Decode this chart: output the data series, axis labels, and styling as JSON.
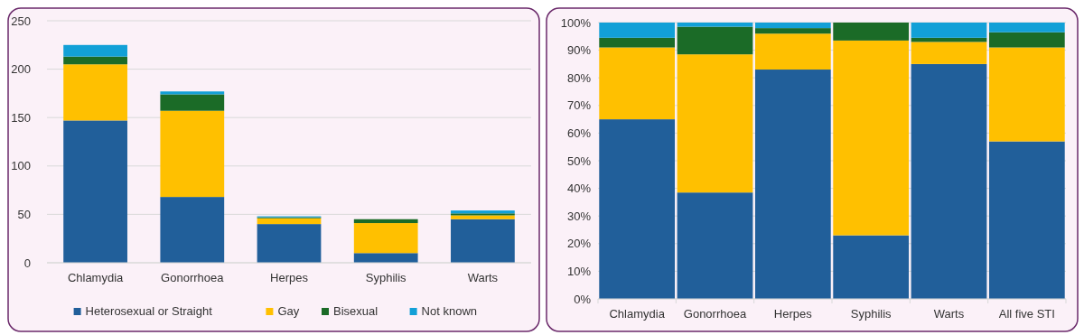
{
  "chart_data": [
    {
      "type": "bar",
      "stacked": true,
      "categories": [
        "Chlamydia",
        "Gonorrhoea",
        "Herpes",
        "Syphilis",
        "Warts"
      ],
      "series": [
        {
          "name": "Heterosexual or Straight",
          "color": "#215f9a",
          "values": [
            147,
            68,
            40,
            10,
            45
          ]
        },
        {
          "name": "Gay",
          "color": "#ffc000",
          "values": [
            58,
            89,
            6,
            31,
            4
          ]
        },
        {
          "name": "Bisexual",
          "color": "#1b6b27",
          "values": [
            8,
            17,
            1,
            4,
            2
          ]
        },
        {
          "name": "Not known",
          "color": "#12a0d7",
          "values": [
            12,
            3,
            1,
            0,
            3
          ]
        }
      ],
      "ylim": [
        0,
        250
      ],
      "yticks": [
        0,
        50,
        100,
        150,
        200,
        250
      ],
      "grid": "y",
      "legend": "bottom"
    },
    {
      "type": "bar",
      "stacked": true,
      "categories": [
        "Chlamydia",
        "Gonorrhoea",
        "Herpes",
        "Syphilis",
        "Warts",
        "All five STI"
      ],
      "series": [
        {
          "color": "#215f9a",
          "values": [
            65,
            38.5,
            83,
            23,
            85,
            57
          ]
        },
        {
          "color": "#ffc000",
          "values": [
            26,
            50,
            13,
            70.5,
            8,
            34
          ]
        },
        {
          "color": "#1b6b27",
          "values": [
            3.5,
            10,
            2,
            6.5,
            1.5,
            5.5
          ]
        },
        {
          "color": "#12a0d7",
          "values": [
            5.5,
            1.5,
            2,
            0,
            5.5,
            3.5
          ]
        }
      ],
      "ylim": [
        0,
        100
      ],
      "yticks": [
        {
          "value": 0,
          "label": "0%"
        },
        {
          "value": 10,
          "label": "10%"
        },
        {
          "value": 20,
          "label": "20%"
        },
        {
          "value": 30,
          "label": "30%"
        },
        {
          "value": 40,
          "label": "40%"
        },
        {
          "value": 50,
          "label": "50%"
        },
        {
          "value": 60,
          "label": "60%"
        },
        {
          "value": 70,
          "label": "70%"
        },
        {
          "value": 80,
          "label": "80%"
        },
        {
          "value": 90,
          "label": "90%"
        },
        {
          "value": 100,
          "label": "100%"
        }
      ],
      "grid": "y"
    }
  ]
}
